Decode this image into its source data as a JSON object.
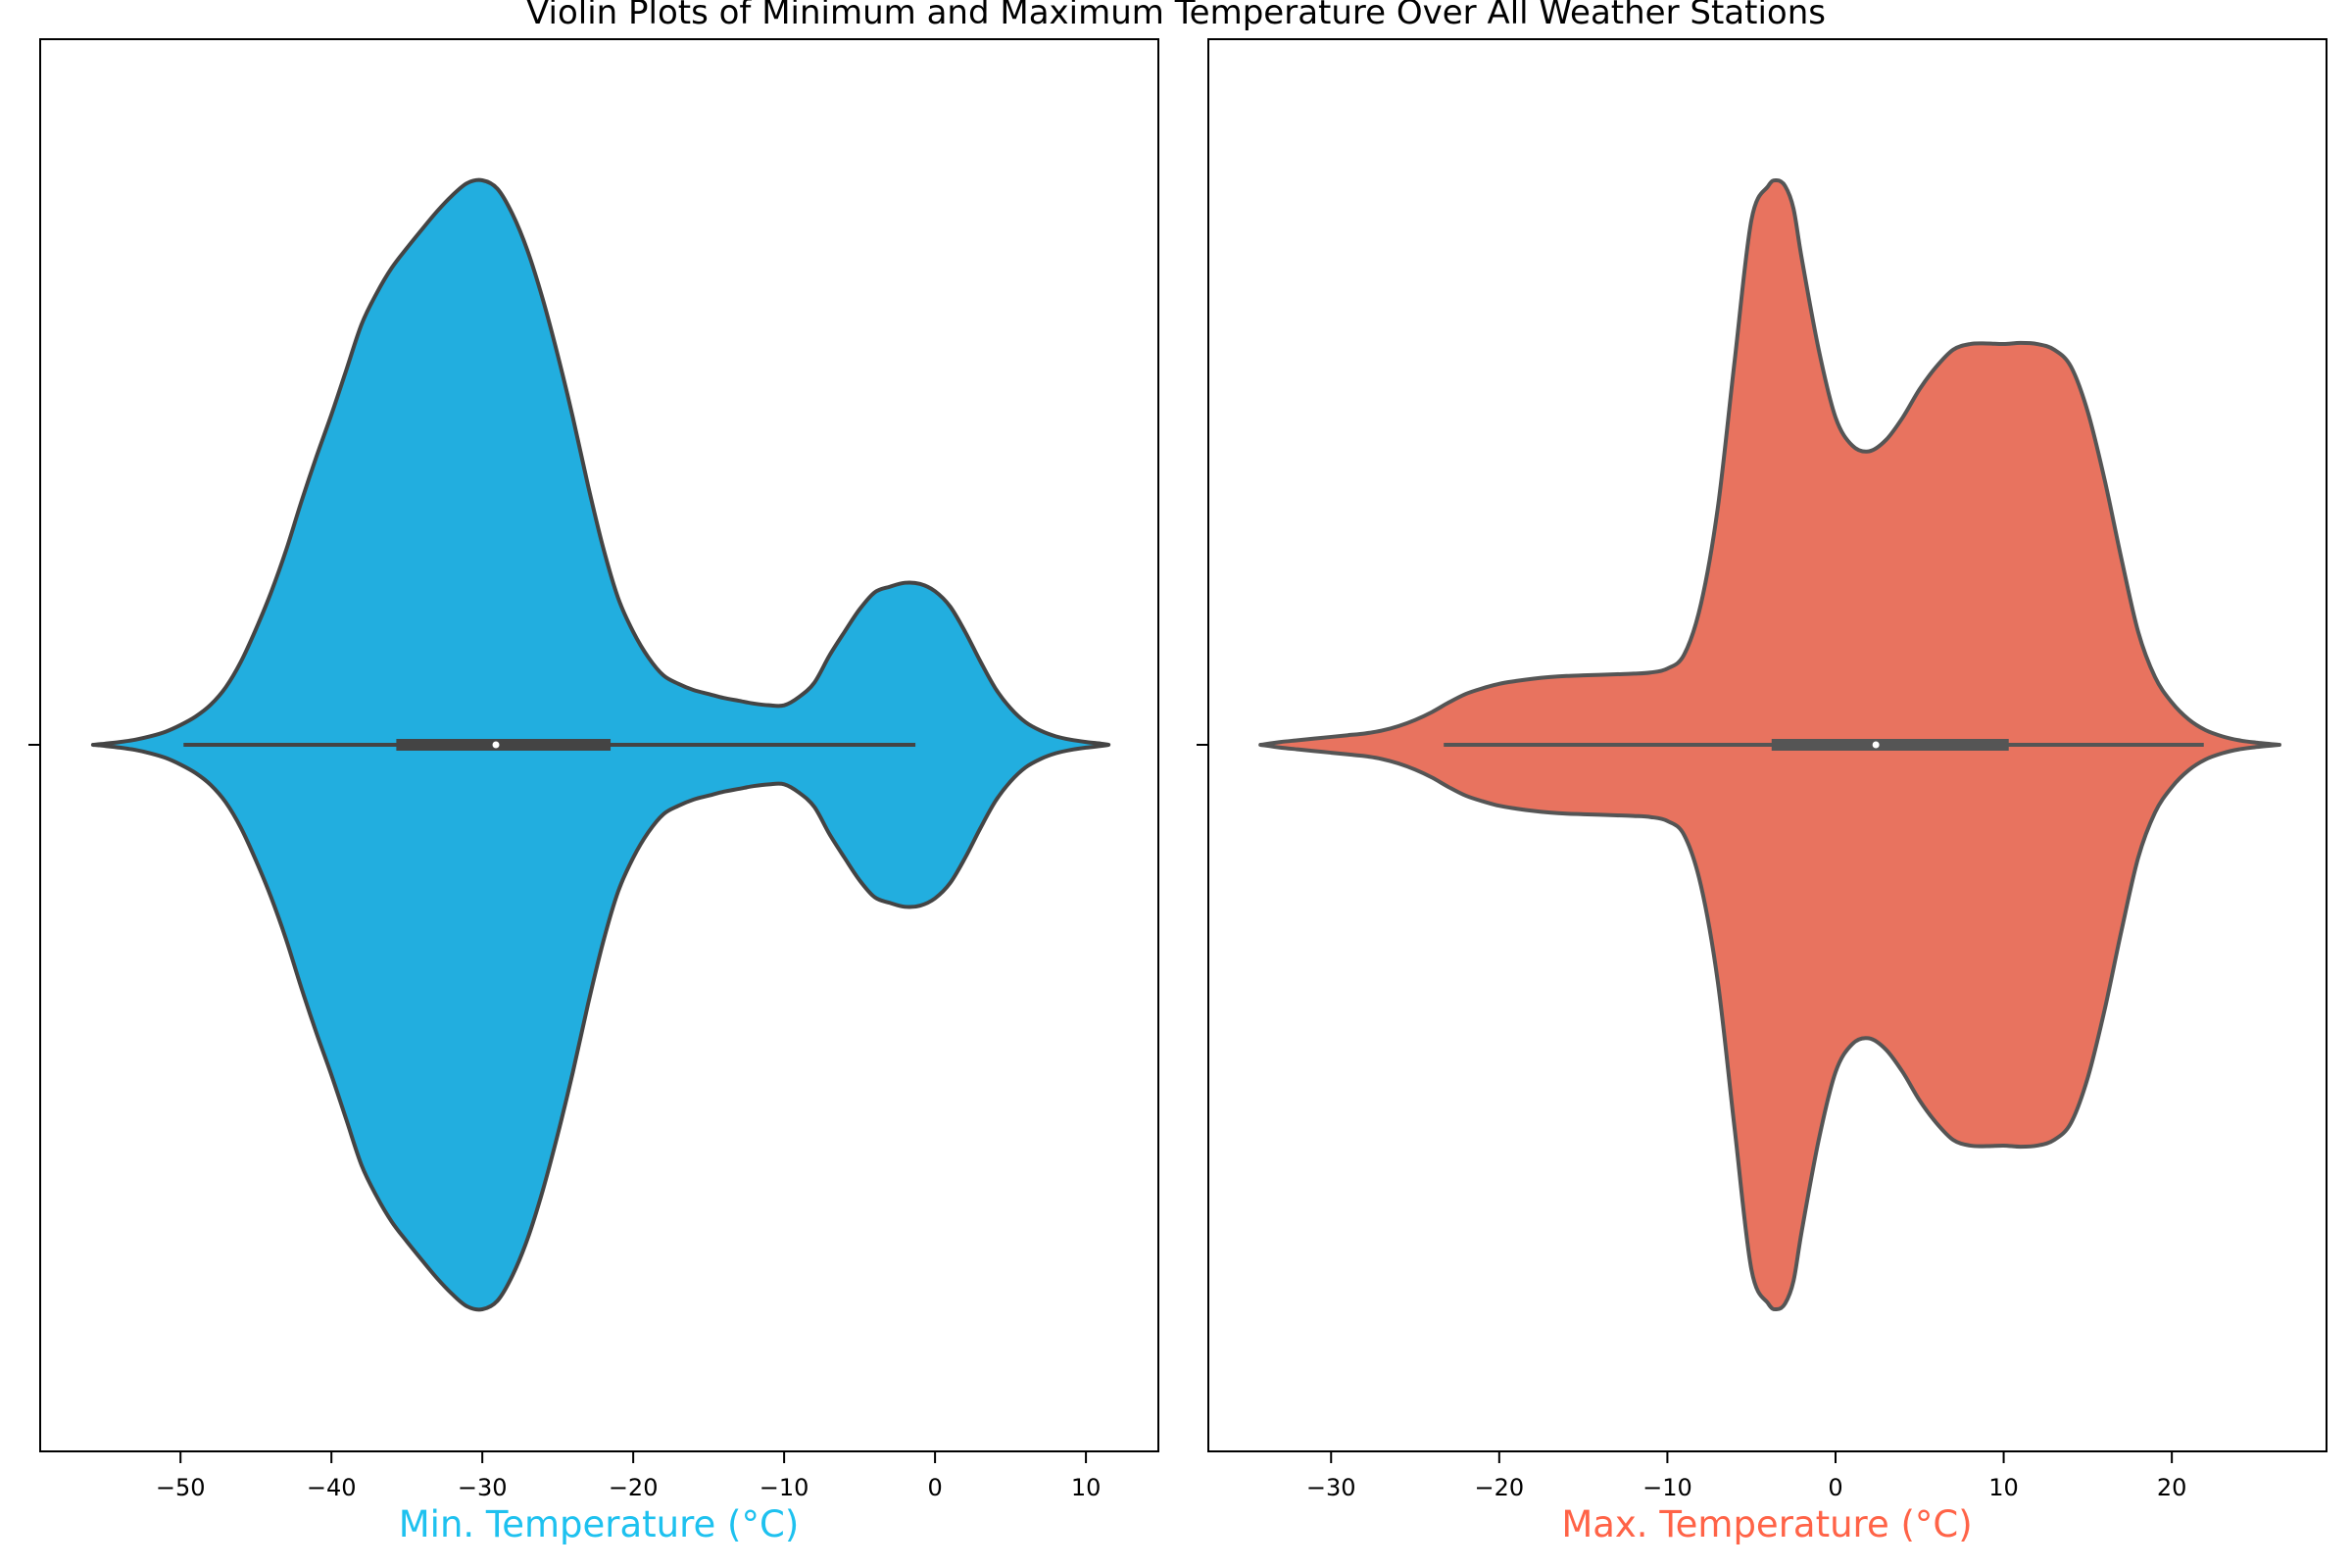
{
  "title": "Violin Plots of Minimum and Maximum Temperature Over All Weather Stations",
  "chart_data": [
    {
      "type": "violin",
      "xlabel": "Min. Temperature (°C)",
      "xlabel_color": "#1ec1ef",
      "fill_color": "#22aedf",
      "outline_color": "#444444",
      "xlim": [
        -59.3,
        14.8
      ],
      "xticks": [
        -50,
        -40,
        -30,
        -20,
        -10,
        0,
        10
      ],
      "xtick_labels": [
        "−50",
        "−40",
        "−30",
        "−20",
        "−10",
        "0",
        "10"
      ],
      "density_profile": {
        "x": [
          -55.8,
          -55,
          -54,
          -53,
          -52,
          -51,
          -50,
          -49,
          -48,
          -47,
          -46,
          -45,
          -44,
          -43,
          -42,
          -41,
          -40,
          -39,
          -38,
          -37,
          -36,
          -35,
          -34,
          -33,
          -32,
          -31,
          -30,
          -29,
          -28,
          -27,
          -26,
          -25,
          -24,
          -23,
          -22,
          -21,
          -20,
          -19,
          -18,
          -17,
          -16,
          -15,
          -14,
          -13,
          -12,
          -11,
          -10,
          -9,
          -8,
          -7,
          -6,
          -5,
          -4,
          -3,
          -2,
          -1,
          0,
          1,
          2,
          3,
          4,
          5,
          6,
          7,
          8,
          9,
          10,
          11,
          11.5
        ],
        "half_width": [
          0.0,
          0.002,
          0.005,
          0.009,
          0.015,
          0.023,
          0.035,
          0.05,
          0.071,
          0.102,
          0.147,
          0.205,
          0.27,
          0.345,
          0.43,
          0.51,
          0.585,
          0.665,
          0.745,
          0.8,
          0.845,
          0.88,
          0.913,
          0.945,
          0.973,
          0.995,
          1.0,
          0.985,
          0.94,
          0.875,
          0.79,
          0.69,
          0.58,
          0.46,
          0.35,
          0.26,
          0.2,
          0.155,
          0.123,
          0.108,
          0.097,
          0.09,
          0.083,
          0.078,
          0.073,
          0.07,
          0.07,
          0.085,
          0.11,
          0.158,
          0.2,
          0.24,
          0.27,
          0.28,
          0.287,
          0.285,
          0.272,
          0.245,
          0.2,
          0.148,
          0.1,
          0.065,
          0.04,
          0.025,
          0.015,
          0.009,
          0.005,
          0.002,
          0.0
        ]
      },
      "box": {
        "whisker_low": -49.8,
        "q1": -35.7,
        "median": -29.1,
        "q3": -21.5,
        "whisker_high": -1.3
      }
    },
    {
      "type": "violin",
      "xlabel": "Max. Temperature (°C)",
      "xlabel_color": "#ff6347",
      "fill_color": "#e8735f",
      "outline_color": "#555555",
      "xlim": [
        -37.3,
        29.2
      ],
      "xticks": [
        -30,
        -20,
        -10,
        0,
        10,
        20
      ],
      "xtick_labels": [
        "−30",
        "−20",
        "−10",
        "0",
        "10",
        "20"
      ],
      "density_profile": {
        "x": [
          -34.2,
          -33,
          -32,
          -31,
          -30,
          -29,
          -28,
          -27,
          -26,
          -25,
          -24,
          -23,
          -22,
          -21,
          -20,
          -19,
          -18,
          -17,
          -16,
          -15,
          -14,
          -13,
          -12,
          -11,
          -10,
          -9,
          -8,
          -7,
          -6,
          -5,
          -4,
          -3.5,
          -3,
          -2.5,
          -2,
          -1,
          0,
          1,
          2,
          3,
          4,
          5,
          6,
          7,
          8,
          9,
          10,
          11,
          12,
          13,
          14,
          15,
          16,
          17,
          18,
          19,
          20,
          21,
          22,
          23,
          24,
          25,
          26.4
        ],
        "half_width": [
          0.0,
          0.005,
          0.008,
          0.011,
          0.014,
          0.017,
          0.02,
          0.025,
          0.033,
          0.044,
          0.058,
          0.075,
          0.09,
          0.1,
          0.108,
          0.113,
          0.117,
          0.12,
          0.122,
          0.123,
          0.124,
          0.125,
          0.126,
          0.128,
          0.135,
          0.16,
          0.25,
          0.42,
          0.68,
          0.93,
          0.99,
          1.0,
          0.99,
          0.95,
          0.86,
          0.7,
          0.58,
          0.53,
          0.52,
          0.54,
          0.58,
          0.63,
          0.67,
          0.7,
          0.71,
          0.711,
          0.71,
          0.712,
          0.71,
          0.7,
          0.67,
          0.59,
          0.47,
          0.33,
          0.2,
          0.12,
          0.075,
          0.045,
          0.026,
          0.015,
          0.008,
          0.004,
          0.0
        ]
      },
      "box": {
        "whisker_low": -23.3,
        "q1": -3.8,
        "median": 2.4,
        "q3": 10.3,
        "whisker_high": 21.9
      }
    }
  ]
}
